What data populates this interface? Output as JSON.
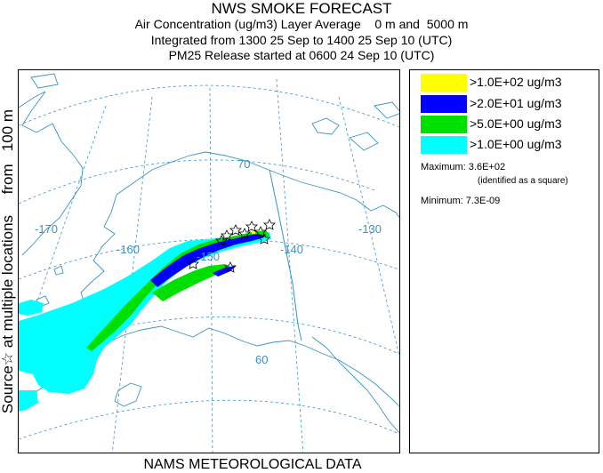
{
  "title_lines": [
    "NWS SMOKE FORECAST",
    "Air Concentration (ug/m3) Layer Average    0 m and  5000 m",
    "Integrated from 1300 25 Sep to 1400 25 Sep 10 (UTC)",
    "PM25 Release started at 0600 24 Sep 10 (UTC)"
  ],
  "side_label": "Source☆ at multiple locations     from   100 m",
  "bottom_label": "NAMS METEOROLOGICAL DATA",
  "legend": {
    "items": [
      {
        "label": ">1.0E+02 ug/m3",
        "color": "#ffff00"
      },
      {
        "label": ">2.0E+01 ug/m3",
        "color": "#0000ff"
      },
      {
        "label": ">5.0E+00 ug/m3",
        "color": "#00e000"
      },
      {
        "label": ">1.0E+00 ug/m3",
        "color": "#00ffff"
      }
    ],
    "maximum": "Maximum: 3.6E+02",
    "maximum_note": "(identified as a square)",
    "minimum": "Minimum: 7.3E-09"
  },
  "map": {
    "longitude_labels": [
      "-170",
      "-160",
      "-150",
      "-140",
      "-130"
    ],
    "latitude_labels": [
      "70",
      "60"
    ],
    "colors": {
      "graticule": "#3a93c8",
      "coast": "#3a93c8",
      "border": "#3a93c8"
    }
  }
}
